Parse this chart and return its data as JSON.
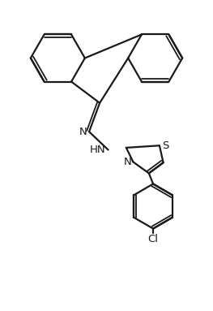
{
  "bg_color": "#ffffff",
  "line_color": "#1a1a1a",
  "line_width": 1.6,
  "figsize": [
    2.63,
    3.83
  ],
  "dpi": 100,
  "xlim": [
    0,
    10
  ],
  "ylim": [
    0,
    14.55
  ]
}
